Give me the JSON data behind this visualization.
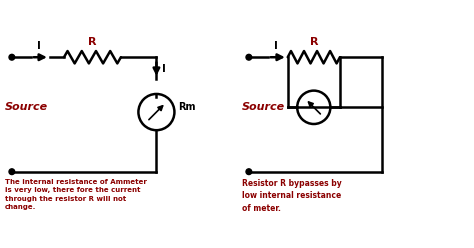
{
  "bg_color": "#ffffff",
  "line_color": "#000000",
  "red_color": "#8B0000",
  "text_left": "The internal resistance of Ammeter\nis very low, there fore the current\nthrough the resistor R will not\nchange.",
  "text_right": "Resistor R bypasses by\nlow internal resistance\nof meter.",
  "source_label": "Source",
  "R_label": "R",
  "I_label": "I",
  "Rm_label": "Rm",
  "xlim": [
    0,
    10
  ],
  "ylim": [
    0,
    5.2
  ]
}
